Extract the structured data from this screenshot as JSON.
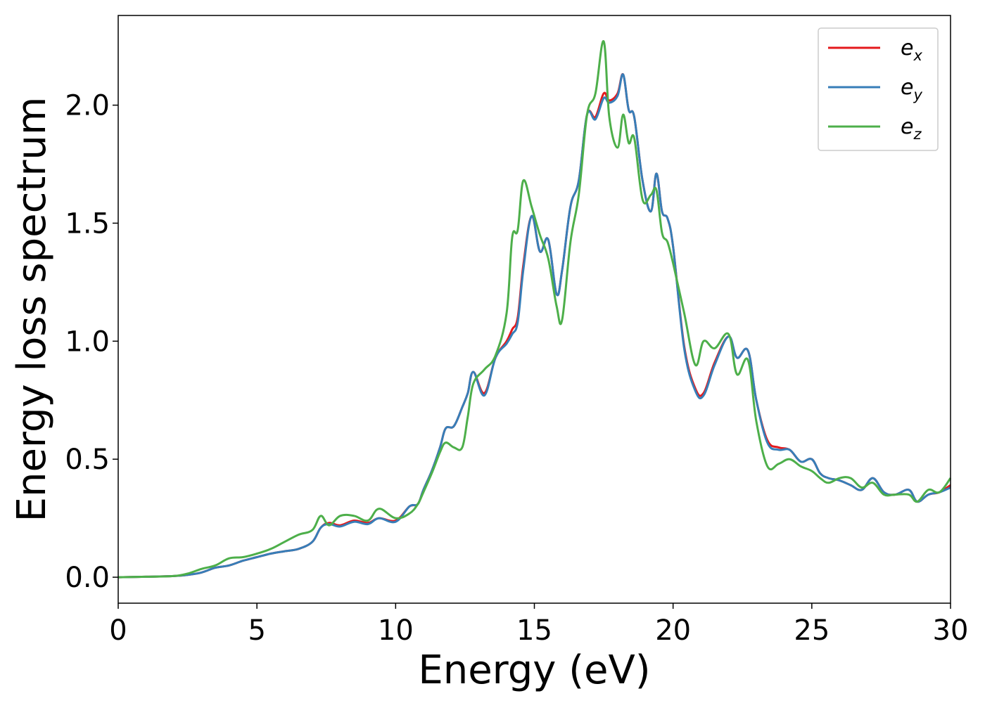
{
  "chart_data": {
    "type": "line",
    "title": "",
    "xlabel": "Energy (eV)",
    "ylabel": "Energy loss spectrum",
    "xlim": [
      0,
      30
    ],
    "ylim": [
      -0.11,
      2.38
    ],
    "xticks": [
      0,
      5,
      10,
      15,
      20,
      25,
      30
    ],
    "xtick_labels": [
      "0",
      "5",
      "10",
      "15",
      "20",
      "25",
      "30"
    ],
    "yticks": [
      0.0,
      0.5,
      1.0,
      1.5,
      2.0
    ],
    "ytick_labels": [
      "0.0",
      "0.5",
      "1.0",
      "1.5",
      "2.0"
    ],
    "grid": false,
    "legend_position": "top-right",
    "series": [
      {
        "name": "e_x",
        "legend_base": "e",
        "legend_sub": "x",
        "color": "#e41a1c",
        "x": [
          0,
          1,
          2,
          2.5,
          3,
          3.5,
          4,
          4.5,
          5,
          5.5,
          6,
          6.5,
          7,
          7.3,
          7.6,
          8,
          8.5,
          9,
          9.4,
          10,
          10.5,
          10.8,
          11,
          11.3,
          11.6,
          11.8,
          12.1,
          12.4,
          12.6,
          12.8,
          13.2,
          13.6,
          14,
          14.2,
          14.4,
          14.6,
          14.9,
          15.2,
          15.5,
          15.8,
          16,
          16.3,
          16.6,
          16.9,
          17.2,
          17.5,
          17.7,
          18,
          18.2,
          18.4,
          18.6,
          18.9,
          19.2,
          19.4,
          19.6,
          19.8,
          20,
          20.4,
          20.8,
          21.1,
          21.5,
          22,
          22.3,
          22.7,
          23,
          23.4,
          23.8,
          24.2,
          24.6,
          25,
          25.3,
          25.6,
          26,
          26.4,
          26.8,
          27.2,
          27.6,
          28,
          28.5,
          28.8,
          29.2,
          29.6,
          30
        ],
        "y": [
          0,
          0.002,
          0.005,
          0.01,
          0.02,
          0.04,
          0.05,
          0.07,
          0.085,
          0.1,
          0.11,
          0.12,
          0.15,
          0.21,
          0.23,
          0.22,
          0.24,
          0.23,
          0.25,
          0.24,
          0.3,
          0.31,
          0.37,
          0.45,
          0.55,
          0.63,
          0.64,
          0.72,
          0.78,
          0.87,
          0.78,
          0.93,
          1.0,
          1.05,
          1.1,
          1.32,
          1.53,
          1.38,
          1.43,
          1.2,
          1.3,
          1.57,
          1.68,
          1.96,
          1.95,
          2.05,
          2.02,
          2.05,
          2.13,
          1.98,
          1.95,
          1.68,
          1.55,
          1.71,
          1.55,
          1.52,
          1.4,
          0.98,
          0.8,
          0.78,
          0.91,
          1.02,
          0.93,
          0.96,
          0.75,
          0.58,
          0.55,
          0.54,
          0.49,
          0.5,
          0.44,
          0.42,
          0.41,
          0.39,
          0.37,
          0.42,
          0.36,
          0.35,
          0.37,
          0.32,
          0.35,
          0.36,
          0.39
        ]
      },
      {
        "name": "e_y",
        "legend_base": "e",
        "legend_sub": "y",
        "color": "#377eb8",
        "x": [
          0,
          1,
          2,
          2.5,
          3,
          3.5,
          4,
          4.5,
          5,
          5.5,
          6,
          6.5,
          7,
          7.3,
          7.6,
          8,
          8.5,
          9,
          9.4,
          10,
          10.5,
          10.8,
          11,
          11.3,
          11.6,
          11.8,
          12.1,
          12.4,
          12.6,
          12.8,
          13.2,
          13.6,
          14,
          14.2,
          14.4,
          14.6,
          14.9,
          15.2,
          15.5,
          15.8,
          16,
          16.3,
          16.6,
          16.9,
          17.2,
          17.5,
          17.7,
          18,
          18.2,
          18.4,
          18.6,
          18.9,
          19.2,
          19.4,
          19.6,
          19.8,
          20,
          20.4,
          20.8,
          21.1,
          21.5,
          22,
          22.3,
          22.7,
          23,
          23.4,
          23.8,
          24.2,
          24.6,
          25,
          25.3,
          25.6,
          26,
          26.4,
          26.8,
          27.2,
          27.6,
          28,
          28.5,
          28.8,
          29.2,
          29.6,
          30
        ],
        "y": [
          0,
          0.002,
          0.005,
          0.01,
          0.02,
          0.04,
          0.05,
          0.07,
          0.085,
          0.1,
          0.11,
          0.12,
          0.15,
          0.21,
          0.225,
          0.215,
          0.235,
          0.225,
          0.25,
          0.235,
          0.3,
          0.31,
          0.37,
          0.45,
          0.55,
          0.63,
          0.64,
          0.72,
          0.78,
          0.87,
          0.77,
          0.93,
          0.99,
          1.03,
          1.08,
          1.3,
          1.53,
          1.38,
          1.43,
          1.2,
          1.3,
          1.57,
          1.68,
          1.96,
          1.94,
          2.03,
          2.01,
          2.04,
          2.13,
          1.98,
          1.95,
          1.68,
          1.55,
          1.71,
          1.55,
          1.52,
          1.4,
          0.97,
          0.79,
          0.77,
          0.9,
          1.02,
          0.93,
          0.96,
          0.75,
          0.57,
          0.54,
          0.54,
          0.49,
          0.5,
          0.44,
          0.42,
          0.41,
          0.39,
          0.37,
          0.42,
          0.36,
          0.35,
          0.37,
          0.32,
          0.35,
          0.36,
          0.38
        ]
      },
      {
        "name": "e_z",
        "legend_base": "e",
        "legend_sub": "z",
        "color": "#4daf4a",
        "x": [
          0,
          1,
          2,
          2.5,
          3,
          3.5,
          4,
          4.5,
          5,
          5.5,
          6,
          6.5,
          7,
          7.3,
          7.6,
          8,
          8.5,
          9,
          9.4,
          10,
          10.5,
          10.8,
          11,
          11.3,
          11.6,
          11.8,
          12.1,
          12.4,
          12.6,
          12.8,
          13.2,
          13.6,
          14,
          14.2,
          14.4,
          14.6,
          14.9,
          15.2,
          15.5,
          15.8,
          16,
          16.3,
          16.6,
          16.9,
          17.2,
          17.5,
          17.7,
          18,
          18.2,
          18.4,
          18.6,
          18.9,
          19.2,
          19.4,
          19.6,
          19.8,
          20,
          20.4,
          20.8,
          21.1,
          21.5,
          22,
          22.3,
          22.7,
          23,
          23.4,
          23.8,
          24.2,
          24.6,
          25,
          25.3,
          25.6,
          26,
          26.4,
          26.8,
          27.2,
          27.6,
          28,
          28.5,
          28.8,
          29.2,
          29.6,
          30
        ],
        "y": [
          0,
          0.002,
          0.005,
          0.015,
          0.035,
          0.05,
          0.08,
          0.085,
          0.1,
          0.12,
          0.15,
          0.18,
          0.2,
          0.26,
          0.22,
          0.26,
          0.26,
          0.24,
          0.29,
          0.25,
          0.27,
          0.31,
          0.36,
          0.44,
          0.53,
          0.57,
          0.55,
          0.55,
          0.68,
          0.82,
          0.88,
          0.94,
          1.12,
          1.44,
          1.47,
          1.68,
          1.57,
          1.45,
          1.35,
          1.15,
          1.09,
          1.42,
          1.62,
          1.96,
          2.05,
          2.27,
          1.95,
          1.82,
          1.96,
          1.84,
          1.86,
          1.6,
          1.62,
          1.64,
          1.46,
          1.42,
          1.33,
          1.12,
          0.9,
          1.0,
          0.97,
          1.03,
          0.86,
          0.92,
          0.66,
          0.47,
          0.48,
          0.5,
          0.47,
          0.45,
          0.42,
          0.4,
          0.42,
          0.42,
          0.38,
          0.4,
          0.35,
          0.35,
          0.35,
          0.32,
          0.37,
          0.36,
          0.42
        ]
      }
    ]
  }
}
